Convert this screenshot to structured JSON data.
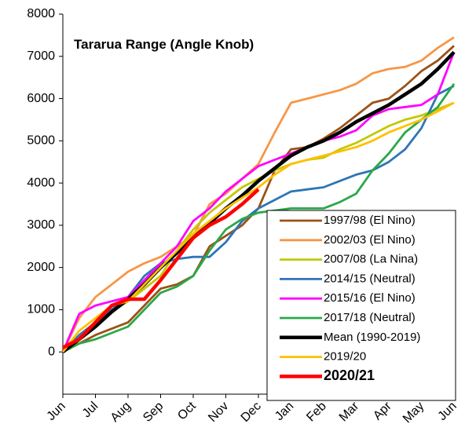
{
  "chart_data": {
    "type": "line",
    "title": "Tararua Range (Angle Knob)",
    "categories": [
      "Jun",
      null,
      "Jul",
      null,
      "Aug",
      null,
      "Sep",
      null,
      "Oct",
      null,
      "Nov",
      null,
      "Dec",
      null,
      "Jan",
      null,
      "Feb",
      null,
      "Mar",
      null,
      "Apr",
      null,
      "May",
      null,
      "Jun"
    ],
    "ylim": [
      -1000,
      8000
    ],
    "yticks": [
      0,
      1000,
      2000,
      3000,
      4000,
      5000,
      6000,
      7000,
      8000
    ],
    "series": [
      {
        "name": "1997/98 (El Nino)",
        "color": "#9c5216",
        "values": [
          0,
          200,
          400,
          550,
          700,
          1100,
          1500,
          1600,
          1800,
          2500,
          2750,
          3000,
          3400,
          4300,
          4800,
          4850,
          5050,
          5300,
          5600,
          5900,
          6000,
          6300,
          6650,
          6900,
          7250
        ]
      },
      {
        "name": "2002/03 (El Nino)",
        "color": "#f79646",
        "values": [
          0,
          800,
          1300,
          1600,
          1900,
          2100,
          2250,
          2500,
          2750,
          3500,
          3750,
          4100,
          4450,
          5200,
          5900,
          6000,
          6100,
          6200,
          6350,
          6600,
          6700,
          6750,
          6900,
          7200,
          7450
        ]
      },
      {
        "name": "2007/08 (La Nina)",
        "color": "#c4c800",
        "values": [
          0,
          350,
          700,
          950,
          1200,
          1500,
          1800,
          2400,
          2900,
          3300,
          3600,
          3900,
          4100,
          4300,
          4450,
          4550,
          4600,
          4800,
          4950,
          5150,
          5350,
          5500,
          5600,
          5750,
          5900
        ]
      },
      {
        "name": "2014/15 (Neutral)",
        "color": "#2e75b6",
        "values": [
          0,
          400,
          700,
          1000,
          1300,
          1800,
          2100,
          2200,
          2250,
          2250,
          2600,
          3100,
          3400,
          3600,
          3800,
          3850,
          3900,
          4050,
          4200,
          4300,
          4500,
          4800,
          5300,
          6100,
          6300
        ]
      },
      {
        "name": "2015/16 (El Nino)",
        "color": "#ff00ff",
        "values": [
          0,
          900,
          1100,
          1200,
          1300,
          1700,
          2100,
          2500,
          3100,
          3400,
          3800,
          4100,
          4400,
          4550,
          4700,
          4850,
          5000,
          5100,
          5250,
          5600,
          5750,
          5800,
          5850,
          6100,
          7100
        ]
      },
      {
        "name": "2017/18 (Neutral)",
        "color": "#2aa84a",
        "values": [
          0,
          200,
          300,
          450,
          600,
          1000,
          1400,
          1550,
          1800,
          2400,
          2900,
          3150,
          3300,
          3350,
          3400,
          3400,
          3400,
          3550,
          3750,
          4300,
          4700,
          5200,
          5500,
          5800,
          6350
        ]
      },
      {
        "name": "Mean (1990-2019)",
        "color": "#000000",
        "values": [
          0,
          300,
          600,
          950,
          1250,
          1600,
          2000,
          2350,
          2700,
          3050,
          3400,
          3700,
          4050,
          4350,
          4650,
          4850,
          5000,
          5200,
          5450,
          5650,
          5850,
          6100,
          6350,
          6700,
          7100
        ]
      },
      {
        "name": "2019/20",
        "color": "#ffc000",
        "values": [
          0,
          500,
          800,
          1100,
          1200,
          1600,
          2000,
          2400,
          2800,
          3100,
          3400,
          3650,
          3900,
          4200,
          4450,
          4550,
          4650,
          4750,
          4850,
          5000,
          5200,
          5350,
          5500,
          5700,
          5900
        ]
      },
      {
        "name": "2020/21",
        "color": "#ff0000",
        "values": [
          100,
          300,
          700,
          1100,
          1250,
          1250,
          1700,
          2200,
          2700,
          3000,
          3200,
          3500,
          3850,
          null,
          null,
          null,
          null,
          null,
          null,
          null,
          null,
          null,
          null,
          null,
          null
        ]
      }
    ]
  }
}
